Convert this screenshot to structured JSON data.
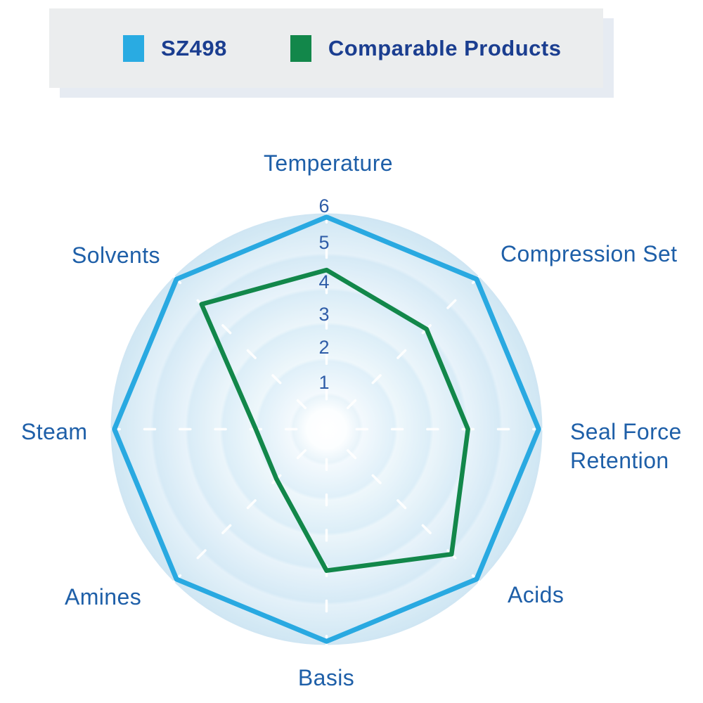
{
  "legend": {
    "items": [
      {
        "label": "SZ498",
        "color": "#29abe2"
      },
      {
        "label": "Comparable Products",
        "color": "#12874a"
      }
    ]
  },
  "chart_data": {
    "type": "radar",
    "categories": [
      "Temperature",
      "Compression Set",
      "Seal Force Retention",
      "Acids",
      "Basis",
      "Amines",
      "Steam",
      "Solvents"
    ],
    "label_lines": {
      "seal_force_retention": [
        "Seal Force",
        "Retention"
      ]
    },
    "scale": {
      "min": 0,
      "max": 6,
      "ticks": [
        1,
        2,
        3,
        4,
        5,
        6
      ]
    },
    "series": [
      {
        "name": "SZ498",
        "color": "#29a9e1",
        "stroke_width": 7,
        "values": [
          6,
          6,
          6,
          6,
          6,
          6,
          6,
          6
        ]
      },
      {
        "name": "Comparable Products",
        "color": "#12874a",
        "stroke_width": 6.5,
        "values": [
          4.5,
          4,
          4,
          5,
          4,
          2,
          2,
          5
        ]
      }
    ],
    "grid": "concentric-circles",
    "legend_position": "top",
    "colors": {
      "axis_label_text": "#1e5fa8",
      "tick_number_text": "#2e5ca7",
      "legend_text": "#1b3e90",
      "ring_fill_outer": "#d0e6f3",
      "ring_fill_center": "#ffffff",
      "tick_dash": "#ffffff"
    }
  }
}
